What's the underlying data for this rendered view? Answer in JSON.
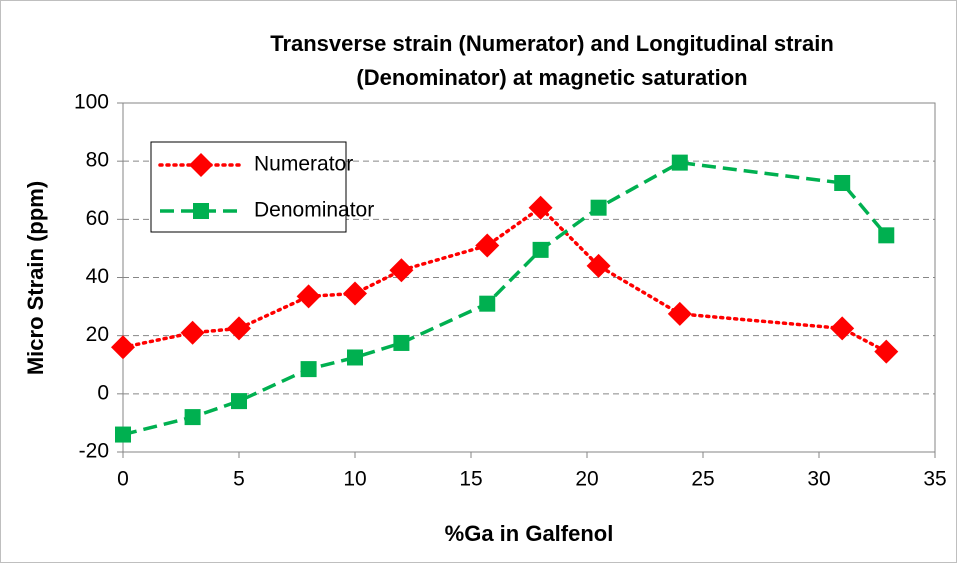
{
  "chart_data": {
    "type": "line",
    "title": [
      "Transverse strain (Numerator) and Longitudinal strain",
      "(Denominator) at magnetic saturation"
    ],
    "x_label": "%Ga in Galfenol",
    "y_label": "Micro Strain (ppm)",
    "series": [
      {
        "name": "Numerator",
        "color": "#ff0000",
        "line_style": "dotted",
        "marker": "diamond",
        "x": [
          0,
          3,
          5,
          8,
          10,
          12,
          15.7,
          18,
          20.5,
          24,
          31,
          32.9
        ],
        "values": [
          16,
          21,
          22.5,
          33.5,
          34.5,
          42.5,
          51,
          64,
          44,
          27.5,
          22.5,
          14.5
        ]
      },
      {
        "name": "Denominator",
        "color": "#00b050",
        "line_style": "dashed",
        "marker": "square",
        "x": [
          0,
          3,
          5,
          8,
          10,
          12,
          15.7,
          18,
          20.5,
          24,
          31,
          32.9
        ],
        "values": [
          -14,
          -8,
          -2.5,
          8.5,
          12.5,
          17.5,
          31,
          49.5,
          64,
          79.5,
          72.5,
          54.5
        ]
      }
    ],
    "xlim": [
      0,
      35
    ],
    "xticks": [
      0,
      5,
      10,
      15,
      20,
      25,
      30,
      35
    ],
    "ylim": [
      -20,
      100
    ],
    "yticks": [
      -20,
      0,
      20,
      40,
      60,
      80,
      100
    ],
    "grid": true,
    "legend": "upper left"
  }
}
